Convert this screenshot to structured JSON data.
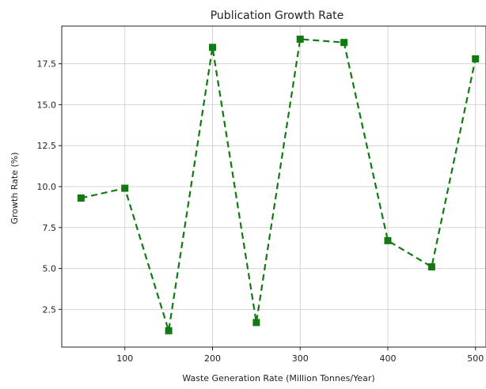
{
  "chart_data": {
    "type": "line",
    "title": "Publication Growth Rate",
    "xlabel": "Waste Generation Rate (Million Tonnes/Year)",
    "ylabel": "Growth Rate (%)",
    "x": [
      50,
      100,
      150,
      200,
      250,
      300,
      350,
      400,
      450,
      500
    ],
    "series": [
      {
        "values": [
          9.3,
          9.9,
          1.2,
          18.5,
          1.7,
          19.0,
          18.8,
          6.7,
          5.1,
          17.8
        ]
      }
    ],
    "xticks": [
      100,
      200,
      300,
      400,
      500
    ],
    "yticks": [
      2.5,
      5.0,
      7.5,
      10.0,
      12.5,
      15.0,
      17.5
    ],
    "xlim": [
      28,
      512
    ],
    "ylim": [
      0.2,
      19.8
    ],
    "grid": true,
    "line_style": "dashed",
    "marker": "square",
    "color": "#127a12"
  }
}
